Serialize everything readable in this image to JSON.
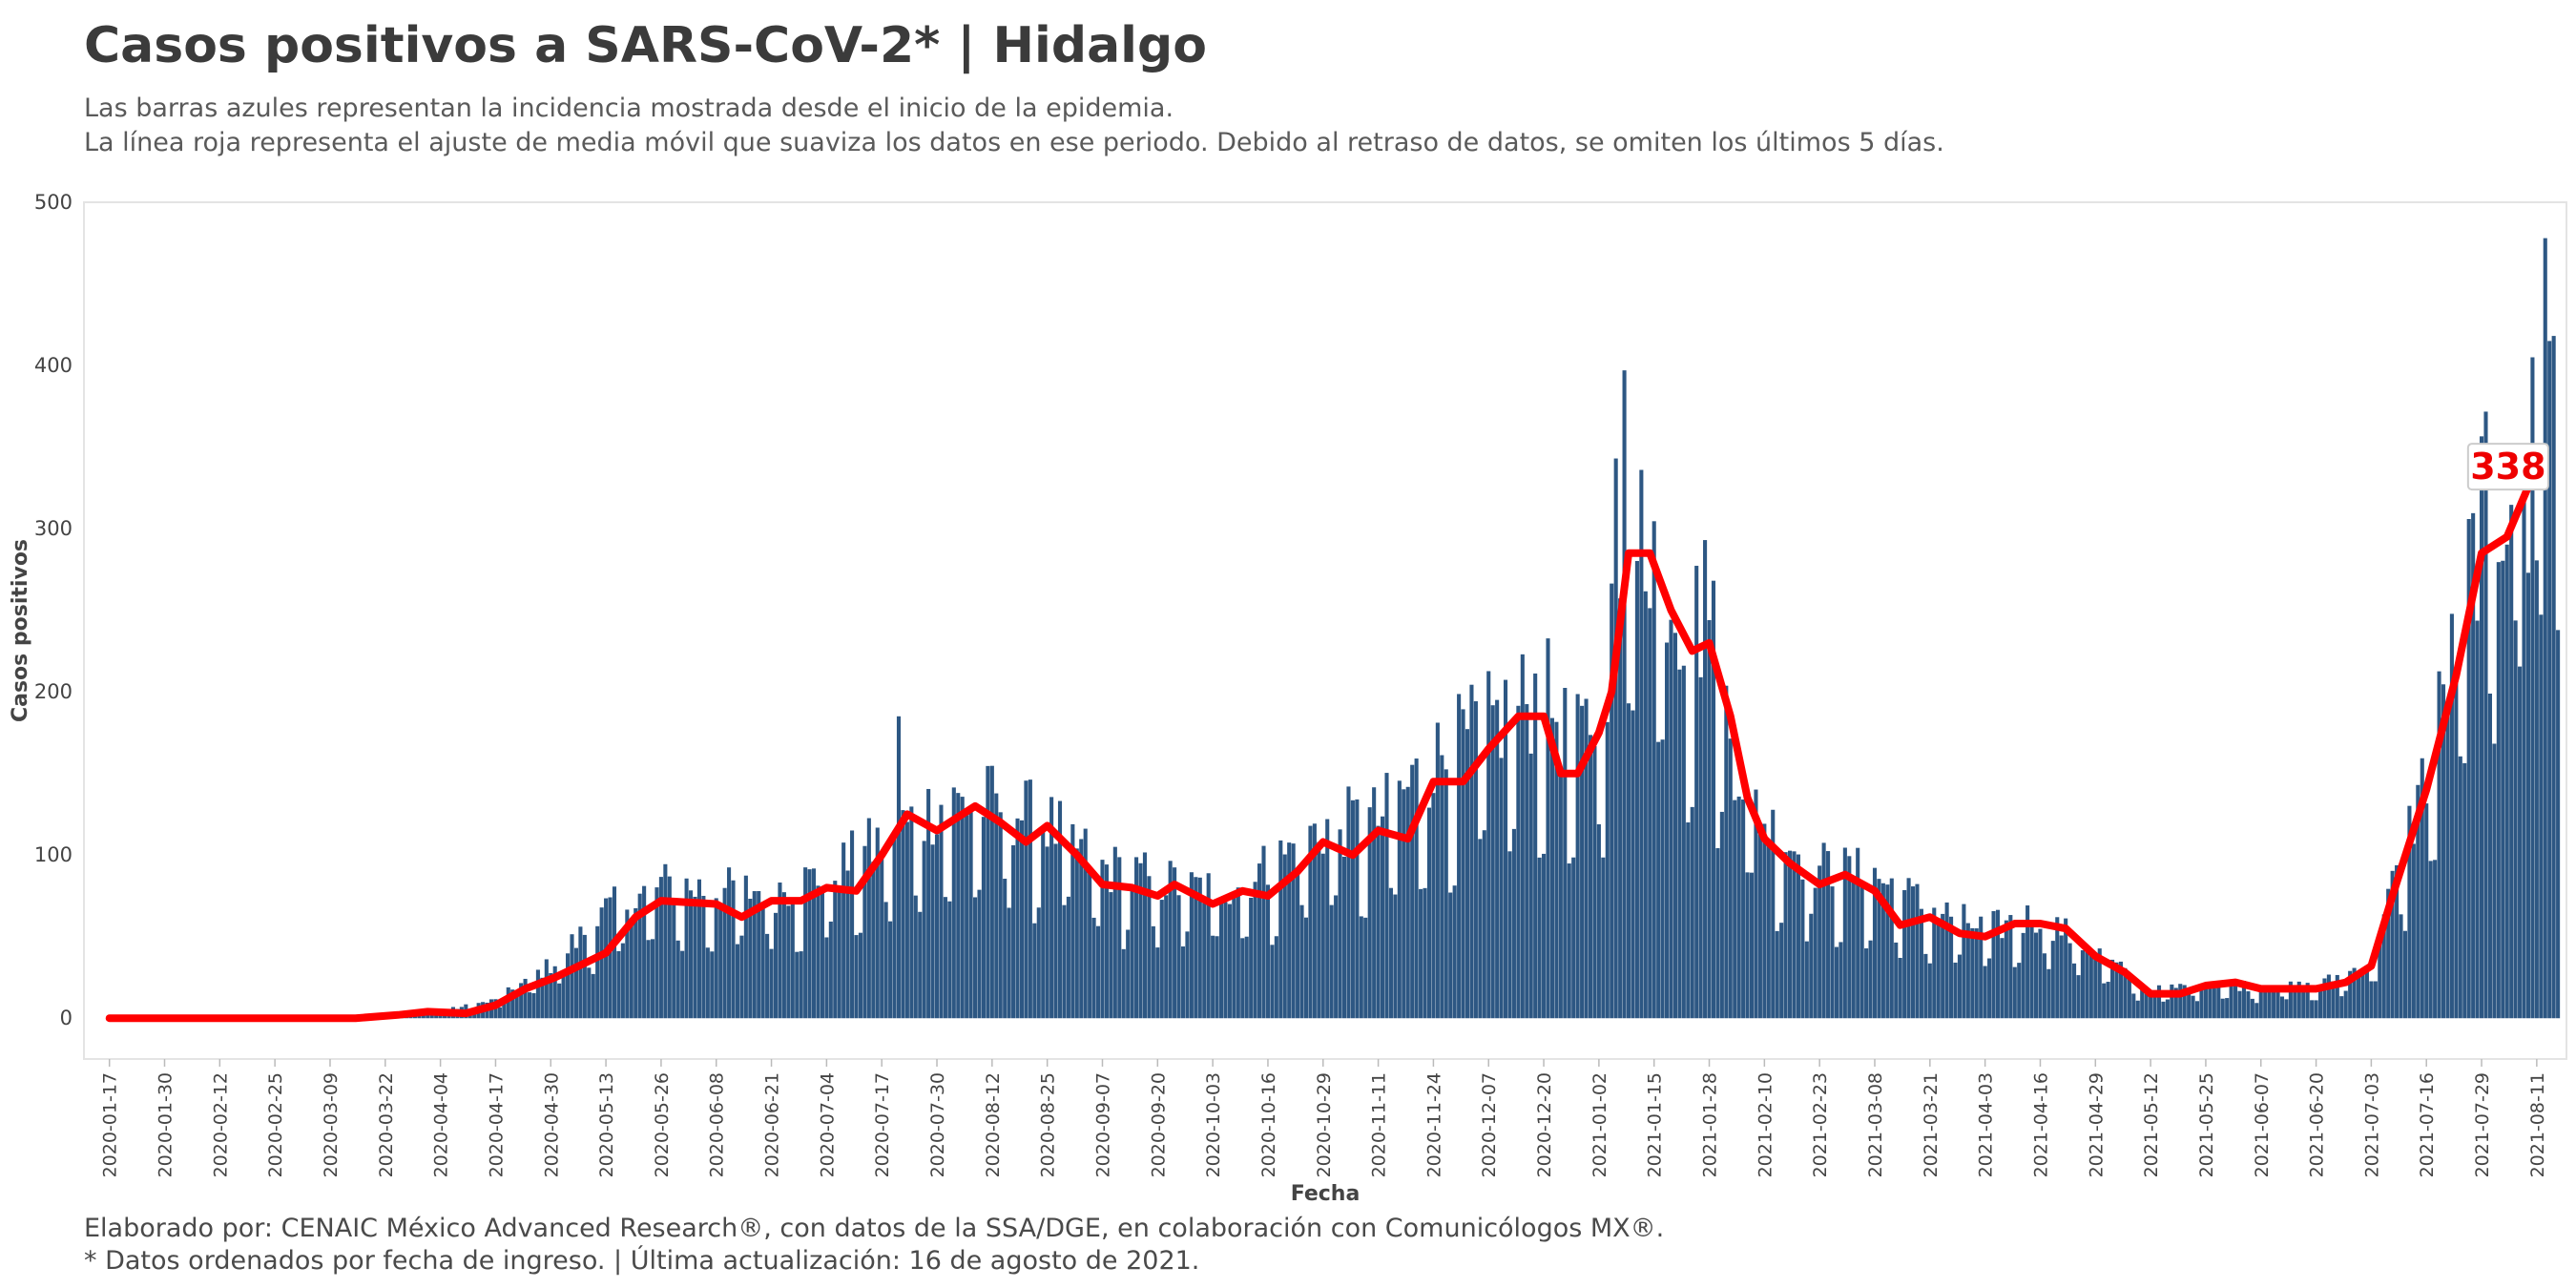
{
  "title": "Casos positivos a SARS-CoV-2* | Hidalgo",
  "subtitle_line1": "Las barras azules representan la incidencia mostrada desde el inicio de la epidemia.",
  "subtitle_line2": "La línea roja representa el ajuste de media móvil que suaviza los datos en ese periodo. Debido al retraso de datos, se omiten los últimos 5 días.",
  "caption_line1": "Elaborado por: CENAIC México Advanced Research®, con datos de la SSA/DGE, en colaboración con Comunicólogos MX®.",
  "caption_line2": "* Datos ordenados por fecha de ingreso. | Última actualización: 16 de agosto de 2021.",
  "colors": {
    "bars": "#2d5783",
    "line": "#ff0000",
    "panel_border": "#e4e4e4"
  },
  "chart_data": {
    "type": "bar",
    "xlabel": "Fecha",
    "ylabel": "Casos positivos",
    "x_range": [
      "2020-01-17",
      "2021-08-16"
    ],
    "ylim": [
      -25,
      500
    ],
    "y_ticks": [
      0,
      100,
      200,
      300,
      400,
      500
    ],
    "x_tick_labels": [
      "2020-01-17",
      "2020-01-30",
      "2020-02-12",
      "2020-02-25",
      "2020-03-09",
      "2020-03-22",
      "2020-04-04",
      "2020-04-17",
      "2020-04-30",
      "2020-05-13",
      "2020-05-26",
      "2020-06-08",
      "2020-06-21",
      "2020-07-04",
      "2020-07-17",
      "2020-07-30",
      "2020-08-12",
      "2020-08-25",
      "2020-09-07",
      "2020-09-20",
      "2020-10-03",
      "2020-10-16",
      "2020-10-29",
      "2020-11-11",
      "2020-11-24",
      "2020-12-07",
      "2020-12-20",
      "2021-01-02",
      "2021-01-15",
      "2021-01-28",
      "2021-02-10",
      "2021-02-23",
      "2021-03-08",
      "2021-03-21",
      "2021-04-03",
      "2021-04-16",
      "2021-04-29",
      "2021-05-12",
      "2021-05-25",
      "2021-06-07",
      "2021-06-20",
      "2021-07-03",
      "2021-07-16",
      "2021-07-29",
      "2021-08-11"
    ],
    "series": [
      {
        "kind": "bar",
        "daily_profile_note": "",
        "anchors": [
          [
            "2020-01-17",
            0
          ],
          [
            "2020-03-15",
            0
          ],
          [
            "2020-03-22",
            2
          ],
          [
            "2020-04-04",
            4
          ],
          [
            "2020-04-17",
            10
          ],
          [
            "2020-04-30",
            30
          ],
          [
            "2020-05-13",
            60
          ],
          [
            "2020-05-26",
            75
          ],
          [
            "2020-06-08",
            72
          ],
          [
            "2020-06-21",
            72
          ],
          [
            "2020-07-04",
            80
          ],
          [
            "2020-07-17",
            100
          ],
          [
            "2020-07-30",
            120
          ],
          [
            "2020-08-12",
            122
          ],
          [
            "2020-08-25",
            110
          ],
          [
            "2020-09-07",
            85
          ],
          [
            "2020-09-20",
            78
          ],
          [
            "2020-10-03",
            72
          ],
          [
            "2020-10-16",
            85
          ],
          [
            "2020-10-29",
            108
          ],
          [
            "2020-11-11",
            112
          ],
          [
            "2020-11-24",
            145
          ],
          [
            "2020-12-07",
            165
          ],
          [
            "2020-12-20",
            185
          ],
          [
            "2020-12-27",
            150
          ],
          [
            "2021-01-02",
            175
          ],
          [
            "2021-01-10",
            285
          ],
          [
            "2021-01-15",
            270
          ],
          [
            "2021-01-22",
            225
          ],
          [
            "2021-01-28",
            225
          ],
          [
            "2021-02-03",
            150
          ],
          [
            "2021-02-10",
            110
          ],
          [
            "2021-02-23",
            85
          ],
          [
            "2021-03-08",
            80
          ],
          [
            "2021-03-21",
            62
          ],
          [
            "2021-04-03",
            50
          ],
          [
            "2021-04-16",
            58
          ],
          [
            "2021-04-29",
            38
          ],
          [
            "2021-05-12",
            15
          ],
          [
            "2021-05-25",
            20
          ],
          [
            "2021-06-07",
            18
          ],
          [
            "2021-06-20",
            18
          ],
          [
            "2021-07-03",
            32
          ],
          [
            "2021-07-16",
            140
          ],
          [
            "2021-07-23",
            210
          ],
          [
            "2021-07-29",
            285
          ],
          [
            "2021-08-03",
            295
          ],
          [
            "2021-08-11",
            338
          ],
          [
            "2021-08-16",
            400
          ]
        ],
        "peaks": [
          [
            "2020-07-21",
            185
          ],
          [
            "2021-01-08",
            397
          ],
          [
            "2021-01-06",
            343
          ],
          [
            "2021-01-12",
            336
          ],
          [
            "2021-01-27",
            293
          ],
          [
            "2021-08-13",
            478
          ],
          [
            "2021-08-10",
            405
          ],
          [
            "2021-08-14",
            415
          ]
        ]
      },
      {
        "kind": "line",
        "name": "",
        "points": [
          [
            "2020-01-17",
            0
          ],
          [
            "2020-03-15",
            0
          ],
          [
            "2020-03-25",
            2
          ],
          [
            "2020-04-01",
            4
          ],
          [
            "2020-04-10",
            3
          ],
          [
            "2020-04-17",
            8
          ],
          [
            "2020-04-24",
            18
          ],
          [
            "2020-05-01",
            25
          ],
          [
            "2020-05-13",
            40
          ],
          [
            "2020-05-20",
            62
          ],
          [
            "2020-05-26",
            72
          ],
          [
            "2020-06-08",
            70
          ],
          [
            "2020-06-14",
            62
          ],
          [
            "2020-06-21",
            72
          ],
          [
            "2020-06-28",
            72
          ],
          [
            "2020-07-04",
            80
          ],
          [
            "2020-07-11",
            78
          ],
          [
            "2020-07-17",
            100
          ],
          [
            "2020-07-23",
            125
          ],
          [
            "2020-07-30",
            115
          ],
          [
            "2020-08-08",
            130
          ],
          [
            "2020-08-14",
            120
          ],
          [
            "2020-08-20",
            108
          ],
          [
            "2020-08-25",
            118
          ],
          [
            "2020-09-01",
            100
          ],
          [
            "2020-09-07",
            82
          ],
          [
            "2020-09-14",
            80
          ],
          [
            "2020-09-20",
            75
          ],
          [
            "2020-09-24",
            82
          ],
          [
            "2020-10-03",
            70
          ],
          [
            "2020-10-10",
            78
          ],
          [
            "2020-10-16",
            75
          ],
          [
            "2020-10-23",
            90
          ],
          [
            "2020-10-29",
            108
          ],
          [
            "2020-11-05",
            100
          ],
          [
            "2020-11-11",
            115
          ],
          [
            "2020-11-18",
            110
          ],
          [
            "2020-11-24",
            145
          ],
          [
            "2020-12-01",
            145
          ],
          [
            "2020-12-07",
            165
          ],
          [
            "2020-12-14",
            185
          ],
          [
            "2020-12-20",
            185
          ],
          [
            "2020-12-24",
            150
          ],
          [
            "2020-12-28",
            150
          ],
          [
            "2021-01-02",
            175
          ],
          [
            "2021-01-05",
            200
          ],
          [
            "2021-01-09",
            285
          ],
          [
            "2021-01-14",
            285
          ],
          [
            "2021-01-19",
            250
          ],
          [
            "2021-01-24",
            225
          ],
          [
            "2021-01-28",
            230
          ],
          [
            "2021-02-02",
            185
          ],
          [
            "2021-02-06",
            135
          ],
          [
            "2021-02-10",
            110
          ],
          [
            "2021-02-16",
            95
          ],
          [
            "2021-02-23",
            82
          ],
          [
            "2021-03-01",
            88
          ],
          [
            "2021-03-08",
            78
          ],
          [
            "2021-03-14",
            57
          ],
          [
            "2021-03-21",
            62
          ],
          [
            "2021-03-28",
            52
          ],
          [
            "2021-04-03",
            50
          ],
          [
            "2021-04-10",
            58
          ],
          [
            "2021-04-16",
            58
          ],
          [
            "2021-04-22",
            55
          ],
          [
            "2021-04-29",
            38
          ],
          [
            "2021-05-06",
            28
          ],
          [
            "2021-05-12",
            15
          ],
          [
            "2021-05-19",
            15
          ],
          [
            "2021-05-25",
            20
          ],
          [
            "2021-06-01",
            22
          ],
          [
            "2021-06-07",
            18
          ],
          [
            "2021-06-14",
            18
          ],
          [
            "2021-06-20",
            18
          ],
          [
            "2021-06-27",
            22
          ],
          [
            "2021-07-03",
            32
          ],
          [
            "2021-07-08",
            75
          ],
          [
            "2021-07-16",
            140
          ],
          [
            "2021-07-23",
            210
          ],
          [
            "2021-07-29",
            285
          ],
          [
            "2021-08-04",
            295
          ],
          [
            "2021-08-11",
            338
          ]
        ]
      }
    ],
    "last_value_label": "338",
    "last_value": 338,
    "last_value_date": "2021-08-11"
  }
}
